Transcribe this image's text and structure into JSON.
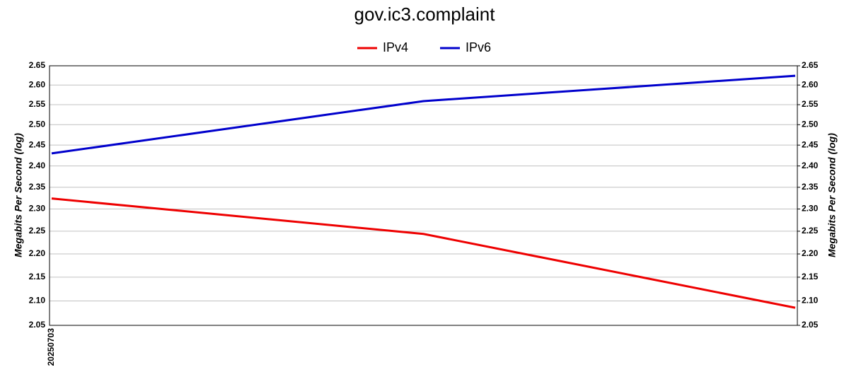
{
  "chart_data": {
    "type": "line",
    "title": "gov.ic3.complaint",
    "y_label": "Megabits Per Second (log)",
    "y2_label": "Megabits Per Second (log)",
    "log_scale": true,
    "grid": true,
    "legend": "top",
    "categories": [
      "20250703",
      null,
      null
    ],
    "series": [
      {
        "name": "IPv4",
        "color": "#ee0000",
        "values": [
          2.324,
          2.244,
          2.086
        ]
      },
      {
        "name": "IPv6",
        "color": "#0000cc",
        "values": [
          2.43,
          2.559,
          2.624
        ]
      }
    ],
    "ylim": [
      2.05,
      2.65
    ],
    "yticks": [
      2.05,
      {
        "value": 2.1,
        "label": "2.10"
      },
      2.15,
      {
        "value": 2.2,
        "label": "2.20"
      },
      2.25,
      {
        "value": 2.3,
        "label": "2.30"
      },
      2.35,
      {
        "value": 2.4,
        "label": "2.40"
      },
      2.45,
      {
        "value": 2.5,
        "label": "2.50"
      },
      2.55,
      {
        "value": 2.6,
        "label": "2.60"
      },
      2.65
    ],
    "y2lim": [
      2.05,
      2.65
    ],
    "y2ticks": [
      2.05,
      {
        "value": 2.1,
        "label": "2.10"
      },
      2.15,
      {
        "value": 2.2,
        "label": "2.20"
      },
      2.25,
      {
        "value": 2.3,
        "label": "2.30"
      },
      2.35,
      {
        "value": 2.4,
        "label": "2.40"
      },
      2.45,
      {
        "value": 2.5,
        "label": "2.50"
      },
      2.55,
      {
        "value": 2.6,
        "label": "2.60"
      },
      2.65
    ]
  }
}
